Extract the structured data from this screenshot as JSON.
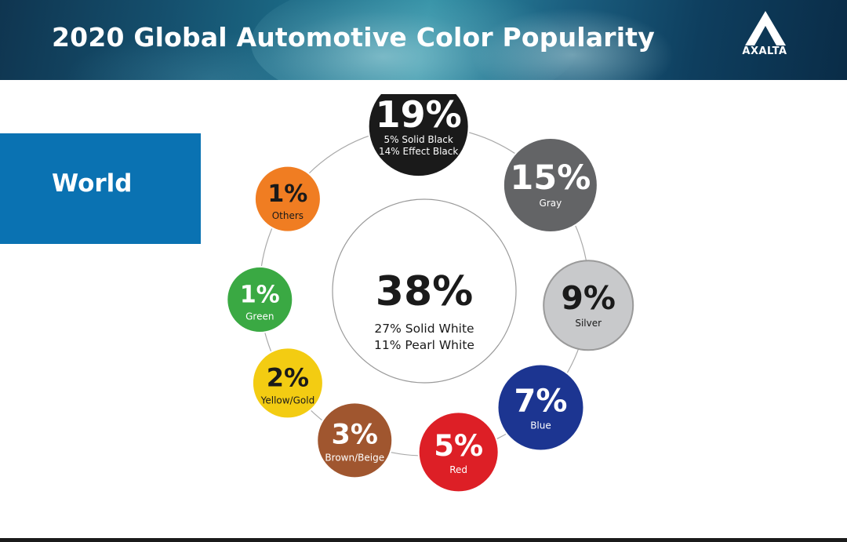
{
  "title": "2020 Global Automotive Color Popularity",
  "logo": {
    "text": "AXALTA"
  },
  "region": "World",
  "chart_data": {
    "type": "bubble-ring",
    "center": {
      "value": "38%",
      "lines": [
        "27% Solid White",
        "11% Pearl White"
      ],
      "color": "#ffffff"
    },
    "categories": [
      "Black",
      "Gray",
      "Silver",
      "Blue",
      "Red",
      "Brown/Beige",
      "Yellow/Gold",
      "Green",
      "Others"
    ],
    "items": [
      {
        "value": 19,
        "label": "19%",
        "sub": [
          "5% Solid Black",
          "14% Effect Black"
        ],
        "color": "#1a1a1a",
        "text_color": "#ffffff"
      },
      {
        "value": 15,
        "label": "15%",
        "sub": [
          "Gray"
        ],
        "color": "#636466",
        "text_color": "#ffffff"
      },
      {
        "value": 9,
        "label": "9%",
        "sub": [
          "Silver"
        ],
        "color": "#c8c9cb",
        "text_color": "#1a1a1a"
      },
      {
        "value": 7,
        "label": "7%",
        "sub": [
          "Blue"
        ],
        "color": "#1c3591",
        "text_color": "#ffffff"
      },
      {
        "value": 5,
        "label": "5%",
        "sub": [
          "Red"
        ],
        "color": "#dd1f26",
        "text_color": "#ffffff"
      },
      {
        "value": 3,
        "label": "3%",
        "sub": [
          "Brown/Beige"
        ],
        "color": "#a0562f",
        "text_color": "#ffffff"
      },
      {
        "value": 2,
        "label": "2%",
        "sub": [
          "Yellow/Gold"
        ],
        "color": "#f3cc12",
        "text_color": "#1a1a1a"
      },
      {
        "value": 1,
        "label": "1%",
        "sub": [
          "Green"
        ],
        "color": "#3aa943",
        "text_color": "#ffffff"
      },
      {
        "value": 1,
        "label": "1%",
        "sub": [
          "Others"
        ],
        "color": "#f07d22",
        "text_color": "#1a1a1a"
      }
    ]
  }
}
